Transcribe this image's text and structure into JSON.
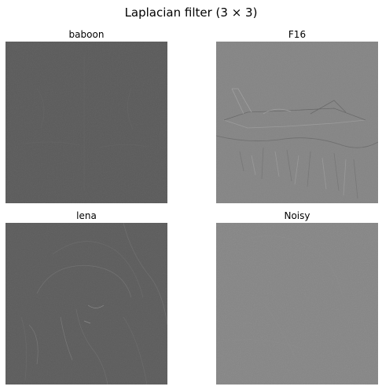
{
  "figure": {
    "title": "Laplacian filter (3 × 3)"
  },
  "panels": [
    {
      "title": "baboon",
      "content": "laplacian-filtered baboon image",
      "tone": "#5a5a5a"
    },
    {
      "title": "F16",
      "content": "laplacian-filtered F16 fighter jet image",
      "tone": "#858585"
    },
    {
      "title": "lena",
      "content": "laplacian-filtered lena portrait image",
      "tone": "#5c5c5c"
    },
    {
      "title": "Noisy",
      "content": "laplacian-filtered noisy image",
      "tone": "#858585"
    }
  ]
}
